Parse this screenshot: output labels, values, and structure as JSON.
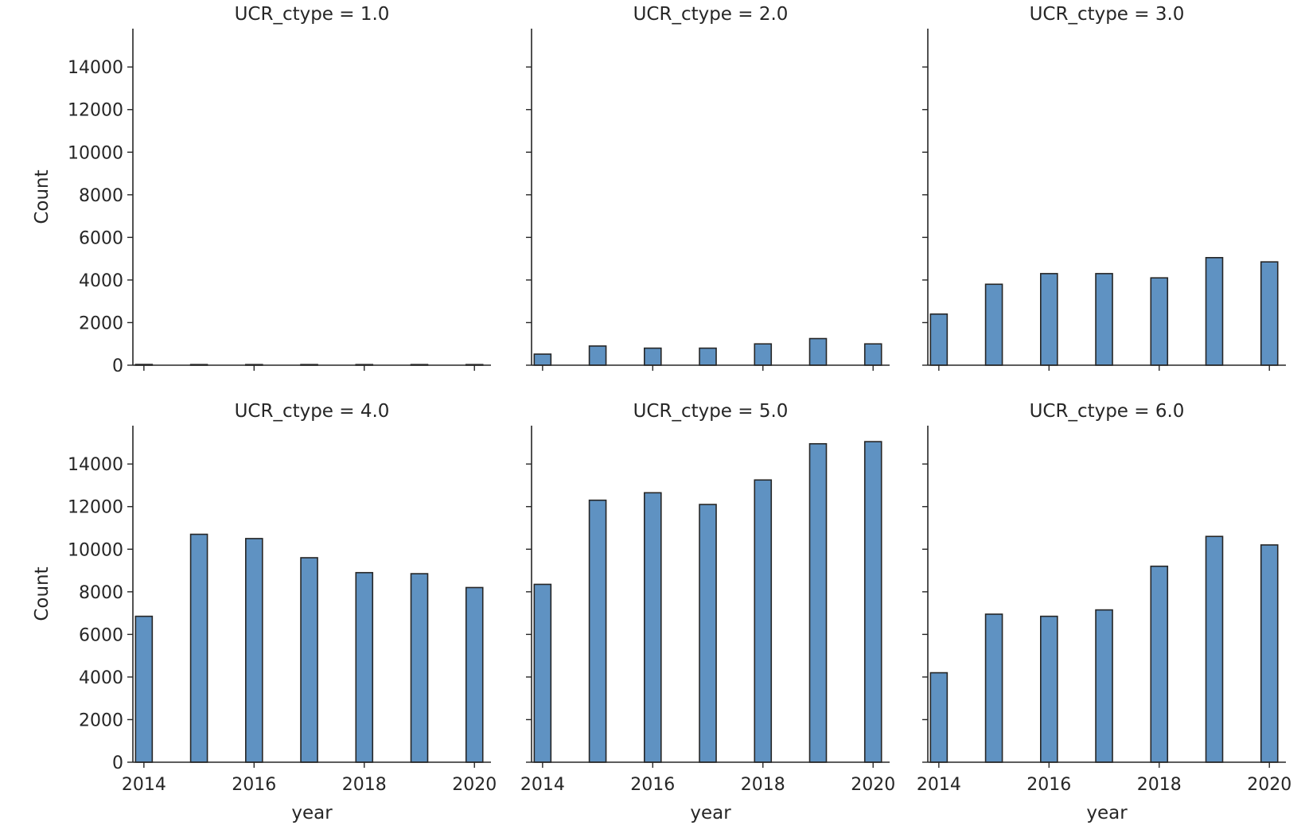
{
  "chart_data": [
    {
      "type": "bar",
      "title": "UCR_ctype = 1.0",
      "x": [
        2014,
        2015,
        2016,
        2017,
        2018,
        2019,
        2020
      ],
      "values": [
        35,
        30,
        30,
        30,
        30,
        30,
        30
      ],
      "ylabel": "Count",
      "xlabel": "",
      "ylim": [
        0,
        15800
      ],
      "xlim": [
        2013.8,
        2020.3
      ]
    },
    {
      "type": "bar",
      "title": "UCR_ctype = 2.0",
      "x": [
        2014,
        2015,
        2016,
        2017,
        2018,
        2019,
        2020
      ],
      "values": [
        520,
        900,
        800,
        800,
        1000,
        1250,
        1000
      ],
      "ylabel": "",
      "xlabel": "",
      "ylim": [
        0,
        15800
      ],
      "xlim": [
        2013.8,
        2020.3
      ]
    },
    {
      "type": "bar",
      "title": "UCR_ctype = 3.0",
      "x": [
        2014,
        2015,
        2016,
        2017,
        2018,
        2019,
        2020
      ],
      "values": [
        2400,
        3800,
        4300,
        4300,
        4100,
        5050,
        4850
      ],
      "ylabel": "",
      "xlabel": "",
      "ylim": [
        0,
        15800
      ],
      "xlim": [
        2013.8,
        2020.3
      ]
    },
    {
      "type": "bar",
      "title": "UCR_ctype = 4.0",
      "x": [
        2014,
        2015,
        2016,
        2017,
        2018,
        2019,
        2020
      ],
      "values": [
        6850,
        10700,
        10500,
        9600,
        8900,
        8850,
        8200
      ],
      "ylabel": "Count",
      "xlabel": "year",
      "ylim": [
        0,
        15800
      ],
      "xlim": [
        2013.8,
        2020.3
      ]
    },
    {
      "type": "bar",
      "title": "UCR_ctype = 5.0",
      "x": [
        2014,
        2015,
        2016,
        2017,
        2018,
        2019,
        2020
      ],
      "values": [
        8350,
        12300,
        12650,
        12100,
        13250,
        14950,
        15050
      ],
      "ylabel": "",
      "xlabel": "year",
      "ylim": [
        0,
        15800
      ],
      "xlim": [
        2013.8,
        2020.3
      ]
    },
    {
      "type": "bar",
      "title": "UCR_ctype = 6.0",
      "x": [
        2014,
        2015,
        2016,
        2017,
        2018,
        2019,
        2020
      ],
      "values": [
        4200,
        6950,
        6850,
        7150,
        9200,
        10600,
        10200
      ],
      "ylabel": "",
      "xlabel": "year",
      "ylim": [
        0,
        15800
      ],
      "xlim": [
        2013.8,
        2020.3
      ]
    }
  ],
  "yticks": [
    "0",
    "2000",
    "4000",
    "6000",
    "8000",
    "10000",
    "12000",
    "14000"
  ],
  "xticks": [
    "2014",
    "2016",
    "2018",
    "2020"
  ],
  "bar_color": "#5f92c2",
  "edge_color": "#262626"
}
